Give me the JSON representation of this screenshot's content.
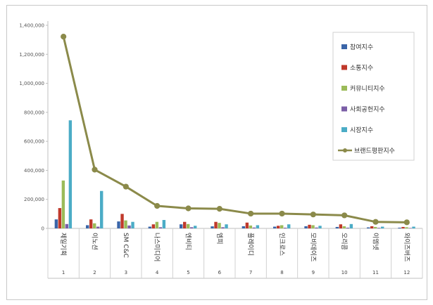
{
  "chart_data": {
    "type": "bar",
    "categories": [
      "제일기획",
      "이노션",
      "SM C&C",
      "나스미디어",
      "엔비티",
      "엠피",
      "플레이디",
      "인크로스",
      "모비데이즈",
      "오리콤",
      "이엠넷",
      "와이즈버즈"
    ],
    "index_labels": [
      "1",
      "2",
      "3",
      "4",
      "5",
      "6",
      "7",
      "8",
      "9",
      "10",
      "11",
      "12"
    ],
    "series": [
      {
        "name": "참여지수",
        "type": "bar",
        "color": "#3a65a8",
        "values": [
          62000,
          22000,
          48000,
          12000,
          28000,
          14000,
          15000,
          12000,
          15000,
          10000,
          7000,
          5000
        ]
      },
      {
        "name": "소통지수",
        "type": "bar",
        "color": "#c0392b",
        "values": [
          140000,
          62000,
          100000,
          28000,
          45000,
          45000,
          40000,
          18000,
          25000,
          28000,
          15000,
          10000
        ]
      },
      {
        "name": "커뮤니티지수",
        "type": "bar",
        "color": "#9bbb59",
        "values": [
          330000,
          35000,
          55000,
          45000,
          30000,
          38000,
          20000,
          22000,
          22000,
          15000,
          10000,
          8000
        ]
      },
      {
        "name": "사회공헌지수",
        "type": "bar",
        "color": "#7b5ea7",
        "values": [
          30000,
          12000,
          20000,
          8000,
          8000,
          8000,
          6000,
          5000,
          6000,
          5000,
          4000,
          3000
        ]
      },
      {
        "name": "시장지수",
        "type": "bar",
        "color": "#4bacc6",
        "values": [
          745000,
          258000,
          45000,
          58000,
          18000,
          28000,
          22000,
          28000,
          18000,
          30000,
          12000,
          12000
        ]
      },
      {
        "name": "브랜드평판지수",
        "type": "line",
        "color": "#8b8a4a",
        "values": [
          1322000,
          405000,
          288000,
          155000,
          138000,
          135000,
          102000,
          102000,
          96000,
          90000,
          45000,
          42000
        ]
      }
    ],
    "y_ticks": [
      "0",
      "200,000",
      "400,000",
      "600,000",
      "800,000",
      "1,000,000",
      "1,200,000",
      "1,400,000"
    ],
    "ylim": [
      0,
      1400000
    ],
    "grid": false,
    "legend_position": "top-right"
  }
}
